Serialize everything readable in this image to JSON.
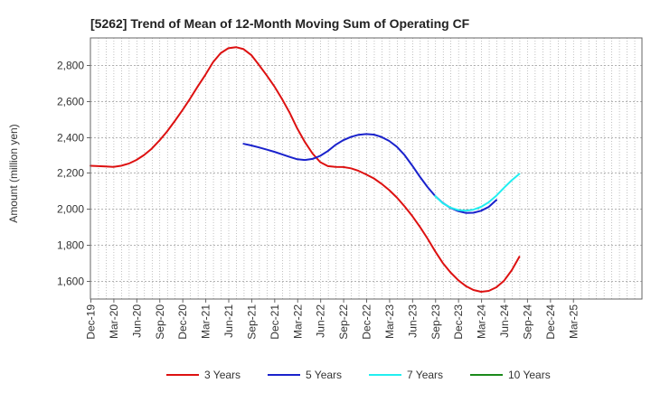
{
  "chart_data": {
    "type": "line",
    "title": "[5262]  Trend of Mean of 12-Month Moving Sum of Operating CF",
    "xlabel": "",
    "ylabel": "Amount (million yen)",
    "ylim": [
      1500,
      2950
    ],
    "yticks": [
      1600,
      1800,
      2000,
      2200,
      2400,
      2600,
      2800
    ],
    "ytick_labels": [
      "1,600",
      "1,800",
      "2,000",
      "2,200",
      "2,400",
      "2,600",
      "2,800"
    ],
    "x_range_months": [
      0,
      72
    ],
    "xticks": [
      {
        "m": 0,
        "label": "Dec-19"
      },
      {
        "m": 3,
        "label": "Mar-20"
      },
      {
        "m": 6,
        "label": "Jun-20"
      },
      {
        "m": 9,
        "label": "Sep-20"
      },
      {
        "m": 12,
        "label": "Dec-20"
      },
      {
        "m": 15,
        "label": "Mar-21"
      },
      {
        "m": 18,
        "label": "Jun-21"
      },
      {
        "m": 21,
        "label": "Sep-21"
      },
      {
        "m": 24,
        "label": "Dec-21"
      },
      {
        "m": 27,
        "label": "Mar-22"
      },
      {
        "m": 30,
        "label": "Jun-22"
      },
      {
        "m": 33,
        "label": "Sep-22"
      },
      {
        "m": 36,
        "label": "Dec-22"
      },
      {
        "m": 39,
        "label": "Mar-23"
      },
      {
        "m": 42,
        "label": "Jun-23"
      },
      {
        "m": 45,
        "label": "Sep-23"
      },
      {
        "m": 48,
        "label": "Dec-23"
      },
      {
        "m": 51,
        "label": "Mar-24"
      },
      {
        "m": 54,
        "label": "Jun-24"
      },
      {
        "m": 57,
        "label": "Sep-24"
      },
      {
        "m": 60,
        "label": "Dec-24"
      },
      {
        "m": 63,
        "label": "Mar-25"
      }
    ],
    "grid": true,
    "legend_position": "bottom",
    "series": [
      {
        "name": "3 Years",
        "color": "#dd1111",
        "points": [
          [
            0,
            2240
          ],
          [
            1,
            2238
          ],
          [
            2,
            2236
          ],
          [
            3,
            2234
          ],
          [
            4,
            2240
          ],
          [
            5,
            2252
          ],
          [
            6,
            2272
          ],
          [
            7,
            2300
          ],
          [
            8,
            2335
          ],
          [
            9,
            2380
          ],
          [
            10,
            2430
          ],
          [
            11,
            2488
          ],
          [
            12,
            2548
          ],
          [
            13,
            2612
          ],
          [
            14,
            2680
          ],
          [
            15,
            2745
          ],
          [
            16,
            2815
          ],
          [
            17,
            2865
          ],
          [
            18,
            2893
          ],
          [
            19,
            2899
          ],
          [
            20,
            2888
          ],
          [
            21,
            2855
          ],
          [
            22,
            2800
          ],
          [
            23,
            2743
          ],
          [
            24,
            2682
          ],
          [
            25,
            2612
          ],
          [
            26,
            2535
          ],
          [
            27,
            2447
          ],
          [
            28,
            2372
          ],
          [
            29,
            2308
          ],
          [
            30,
            2260
          ],
          [
            31,
            2238
          ],
          [
            32,
            2234
          ],
          [
            33,
            2233
          ],
          [
            34,
            2226
          ],
          [
            35,
            2212
          ],
          [
            36,
            2192
          ],
          [
            37,
            2170
          ],
          [
            38,
            2140
          ],
          [
            39,
            2105
          ],
          [
            40,
            2064
          ],
          [
            41,
            2015
          ],
          [
            42,
            1962
          ],
          [
            43,
            1902
          ],
          [
            44,
            1836
          ],
          [
            45,
            1765
          ],
          [
            46,
            1700
          ],
          [
            47,
            1648
          ],
          [
            48,
            1605
          ],
          [
            49,
            1572
          ],
          [
            50,
            1550
          ],
          [
            51,
            1540
          ],
          [
            52,
            1545
          ],
          [
            53,
            1565
          ],
          [
            54,
            1602
          ],
          [
            55,
            1660
          ],
          [
            56,
            1735
          ]
        ]
      },
      {
        "name": "5 Years",
        "color": "#1a22cc",
        "points": [
          [
            20,
            2362
          ],
          [
            21,
            2353
          ],
          [
            22,
            2342
          ],
          [
            23,
            2330
          ],
          [
            24,
            2318
          ],
          [
            25,
            2304
          ],
          [
            26,
            2289
          ],
          [
            27,
            2276
          ],
          [
            28,
            2272
          ],
          [
            29,
            2278
          ],
          [
            30,
            2295
          ],
          [
            31,
            2322
          ],
          [
            32,
            2356
          ],
          [
            33,
            2382
          ],
          [
            34,
            2400
          ],
          [
            35,
            2412
          ],
          [
            36,
            2416
          ],
          [
            37,
            2413
          ],
          [
            38,
            2400
          ],
          [
            39,
            2378
          ],
          [
            40,
            2346
          ],
          [
            41,
            2300
          ],
          [
            42,
            2242
          ],
          [
            43,
            2180
          ],
          [
            44,
            2122
          ],
          [
            45,
            2072
          ],
          [
            46,
            2034
          ],
          [
            47,
            2006
          ],
          [
            48,
            1988
          ],
          [
            49,
            1978
          ],
          [
            50,
            1979
          ],
          [
            51,
            1990
          ],
          [
            52,
            2012
          ],
          [
            53,
            2050
          ]
        ]
      },
      {
        "name": "7 Years",
        "color": "#22eef0",
        "points": [
          [
            45,
            2072
          ],
          [
            46,
            2032
          ],
          [
            47,
            2008
          ],
          [
            48,
            1994
          ],
          [
            49,
            1990
          ],
          [
            50,
            1996
          ],
          [
            51,
            2012
          ],
          [
            52,
            2038
          ],
          [
            53,
            2074
          ],
          [
            54,
            2118
          ],
          [
            55,
            2160
          ],
          [
            56,
            2195
          ]
        ]
      },
      {
        "name": "10 Years",
        "color": "#1a8a1a",
        "points": []
      }
    ]
  }
}
